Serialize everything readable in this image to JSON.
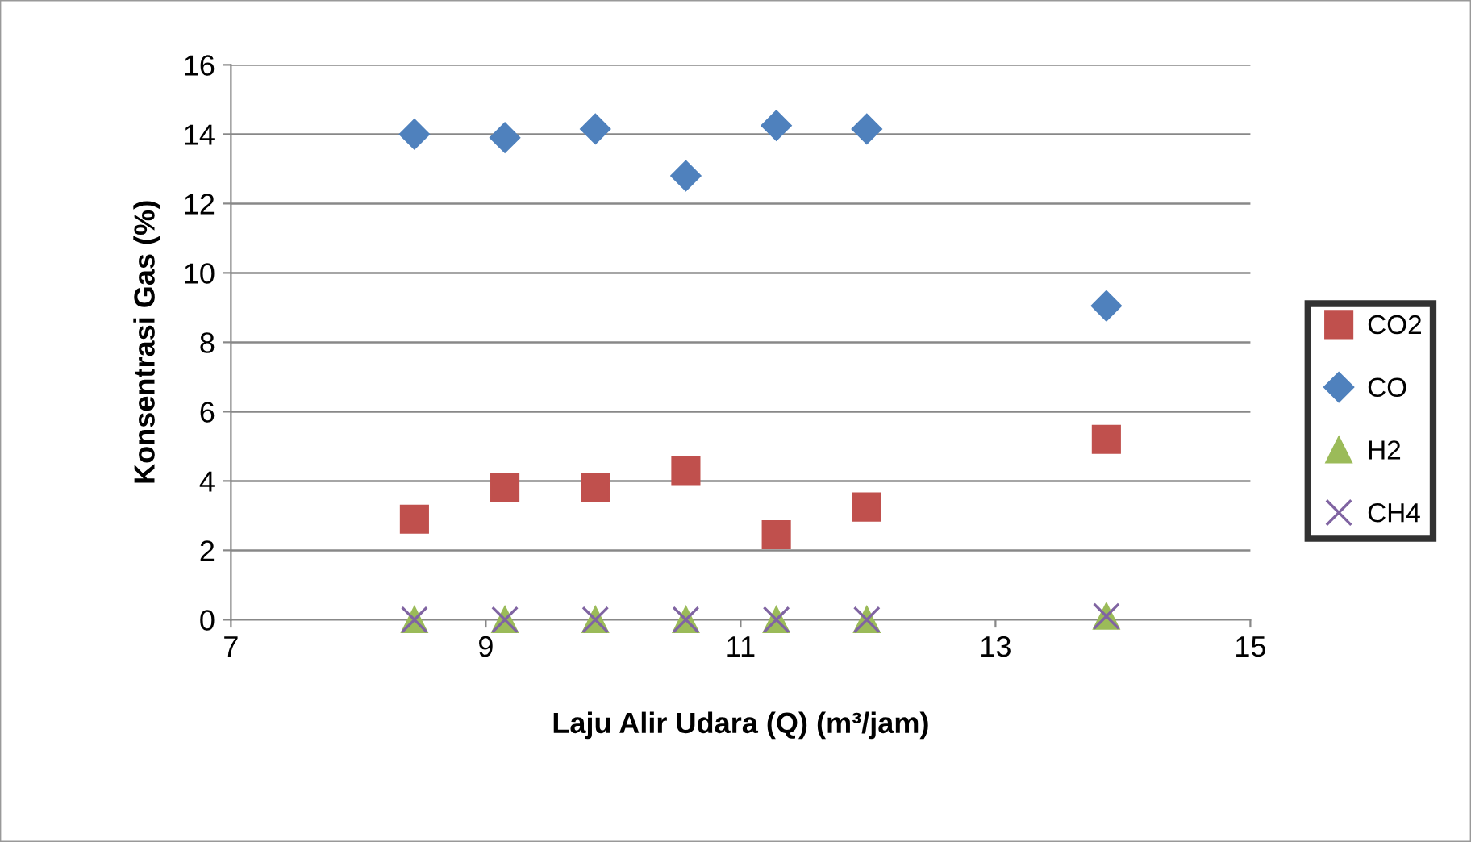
{
  "chart_data": {
    "type": "scatter",
    "xlabel": "Laju Alir Udara (Q) (m³/jam)",
    "ylabel": "Konsentrasi Gas (%)",
    "x": [
      8.44,
      9.15,
      9.86,
      10.57,
      11.28,
      11.99,
      13.87
    ],
    "series": [
      {
        "name": "CO2",
        "color": "#c0504d",
        "marker": "square",
        "values": [
          2.9,
          3.8,
          3.8,
          4.3,
          2.45,
          3.25,
          5.2
        ]
      },
      {
        "name": "CO",
        "color": "#4f81bd",
        "marker": "diamond",
        "values": [
          14.0,
          13.9,
          14.15,
          12.8,
          14.25,
          14.15,
          9.05
        ]
      },
      {
        "name": "H2",
        "color": "#9bbb59",
        "marker": "triangle",
        "values": [
          0,
          0,
          0,
          0,
          0,
          0,
          0.1
        ]
      },
      {
        "name": "CH4",
        "color": "#8064a2",
        "marker": "cross",
        "values": [
          0,
          0,
          0,
          0,
          0,
          0,
          0.1
        ]
      }
    ],
    "xlim": [
      7,
      15
    ],
    "xticks": [
      7,
      9,
      11,
      13,
      15
    ],
    "ylim": [
      0,
      16
    ],
    "yticks": [
      0,
      2,
      4,
      6,
      8,
      10,
      12,
      14,
      16
    ],
    "grid": "y",
    "legend": "right"
  }
}
